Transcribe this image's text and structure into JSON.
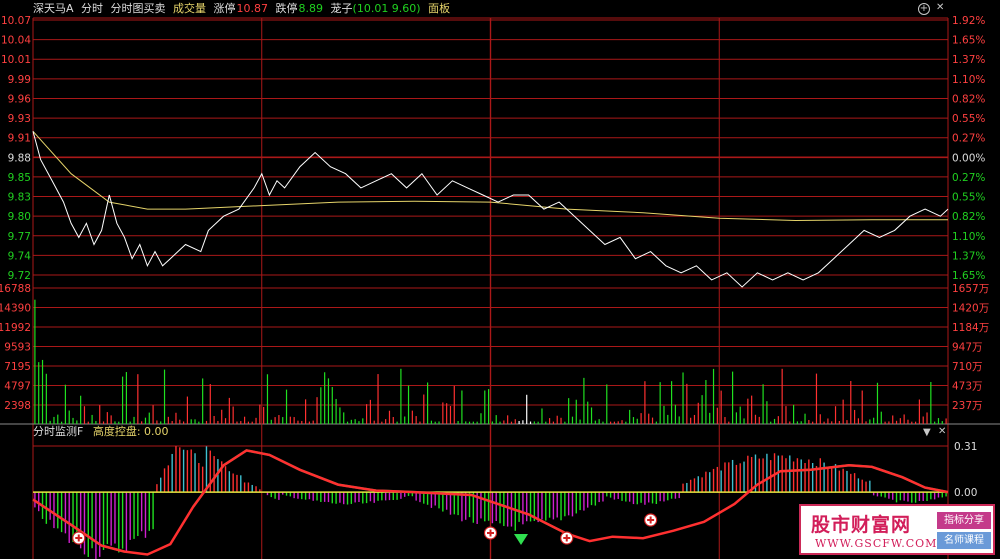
{
  "header": {
    "stock_name": "深天马A",
    "mode_minute": "分时",
    "mode_trades": "分时图买卖",
    "volume_label": "成交量",
    "limit_up_label": "涨停",
    "limit_up_value": "10.87",
    "limit_down_label": "跌停",
    "limit_down_value": "8.89",
    "warrant_label": "茏子",
    "warrant_value": "(10.01 9.60)",
    "panel_label": "面板"
  },
  "controls": {
    "add_icon": "plus-circle-icon",
    "close_icon": "close-icon",
    "dropdown_icon": "triangle-down-icon"
  },
  "indicator": {
    "name": "分时监测F",
    "param_label": "高度控盘:",
    "param_value": "0.00"
  },
  "price_axis": {
    "left": [
      "10.07",
      "10.04",
      "10.01",
      "9.99",
      "9.96",
      "9.93",
      "9.91",
      "9.88",
      "9.85",
      "9.83",
      "9.80",
      "9.77",
      "9.74",
      "9.72"
    ],
    "right": [
      "1.92%",
      "1.65%",
      "1.37%",
      "1.10%",
      "0.82%",
      "0.55%",
      "0.27%",
      "0.00%",
      "0.27%",
      "0.55%",
      "0.82%",
      "1.10%",
      "1.37%",
      "1.65%"
    ]
  },
  "volume_axis": {
    "left": [
      "16788",
      "14390",
      "11992",
      "9593",
      "7195",
      "4797",
      "2398"
    ],
    "right": [
      "1657万",
      "1420万",
      "1184万",
      "947万",
      "710万",
      "473万",
      "237万"
    ]
  },
  "indicator_axis": {
    "right": [
      "0.31",
      "0.00"
    ]
  },
  "colors": {
    "up": "#ff3030",
    "down": "#20e020",
    "price_line": "#ffffff",
    "avg_line": "#e6d46a",
    "grid": "#aa1818",
    "axis_text_up": "#ff4040",
    "axis_text_neutral": "#dcdcdc",
    "axis_text_down": "#20d020",
    "magenta": "#d020d0",
    "cyan": "#40c0d0",
    "dark_green": "#108850"
  },
  "watermark": {
    "title": "股市财富网",
    "url": "WWW.GSCFW.COM",
    "badge1": "指标分享",
    "badge2": "名师课程"
  },
  "chart_data": {
    "type": "line",
    "price": {
      "prev_close": 9.88,
      "ylim": [
        9.69,
        10.07
      ],
      "x_minutes": [
        0,
        240
      ],
      "series": [
        {
          "values": [
            [
              0,
              9.91
            ],
            [
              2,
              9.87
            ],
            [
              5,
              9.84
            ],
            [
              8,
              9.81
            ],
            [
              10,
              9.78
            ],
            [
              12,
              9.76
            ],
            [
              14,
              9.78
            ],
            [
              16,
              9.75
            ],
            [
              18,
              9.77
            ],
            [
              20,
              9.82
            ],
            [
              22,
              9.78
            ],
            [
              24,
              9.76
            ],
            [
              26,
              9.73
            ],
            [
              28,
              9.75
            ],
            [
              30,
              9.72
            ],
            [
              32,
              9.74
            ],
            [
              34,
              9.72
            ],
            [
              36,
              9.73
            ],
            [
              40,
              9.75
            ],
            [
              44,
              9.74
            ],
            [
              46,
              9.77
            ],
            [
              50,
              9.79
            ],
            [
              54,
              9.8
            ],
            [
              58,
              9.83
            ],
            [
              60,
              9.85
            ],
            [
              62,
              9.82
            ],
            [
              64,
              9.84
            ],
            [
              66,
              9.83
            ],
            [
              70,
              9.86
            ],
            [
              74,
              9.88
            ],
            [
              78,
              9.86
            ],
            [
              82,
              9.85
            ],
            [
              86,
              9.83
            ],
            [
              90,
              9.84
            ],
            [
              94,
              9.85
            ],
            [
              98,
              9.83
            ],
            [
              102,
              9.85
            ],
            [
              106,
              9.82
            ],
            [
              110,
              9.84
            ],
            [
              114,
              9.83
            ],
            [
              118,
              9.82
            ],
            [
              122,
              9.81
            ],
            [
              126,
              9.82
            ],
            [
              130,
              9.82
            ],
            [
              134,
              9.8
            ],
            [
              138,
              9.81
            ],
            [
              142,
              9.79
            ],
            [
              146,
              9.77
            ],
            [
              150,
              9.75
            ],
            [
              154,
              9.76
            ],
            [
              158,
              9.73
            ],
            [
              162,
              9.74
            ],
            [
              166,
              9.72
            ],
            [
              170,
              9.71
            ],
            [
              174,
              9.72
            ],
            [
              178,
              9.7
            ],
            [
              182,
              9.71
            ],
            [
              186,
              9.69
            ],
            [
              190,
              9.71
            ],
            [
              194,
              9.7
            ],
            [
              198,
              9.71
            ],
            [
              202,
              9.7
            ],
            [
              206,
              9.71
            ],
            [
              210,
              9.73
            ],
            [
              214,
              9.75
            ],
            [
              218,
              9.77
            ],
            [
              222,
              9.76
            ],
            [
              226,
              9.77
            ],
            [
              230,
              9.79
            ],
            [
              234,
              9.8
            ],
            [
              238,
              9.79
            ],
            [
              240,
              9.8
            ]
          ]
        },
        {
          "values": [
            [
              0,
              9.91
            ],
            [
              10,
              9.85
            ],
            [
              20,
              9.81
            ],
            [
              30,
              9.8
            ],
            [
              40,
              9.8
            ],
            [
              60,
              9.805
            ],
            [
              80,
              9.81
            ],
            [
              100,
              9.811
            ],
            [
              120,
              9.81
            ],
            [
              140,
              9.8
            ],
            [
              160,
              9.795
            ],
            [
              180,
              9.787
            ],
            [
              200,
              9.784
            ],
            [
              220,
              9.785
            ],
            [
              240,
              9.785
            ]
          ]
        }
      ]
    },
    "volume": {
      "ylim": [
        0,
        17500
      ],
      "bars_count": 240
    },
    "indicator": {
      "ylim": [
        -0.45,
        0.35
      ]
    }
  }
}
